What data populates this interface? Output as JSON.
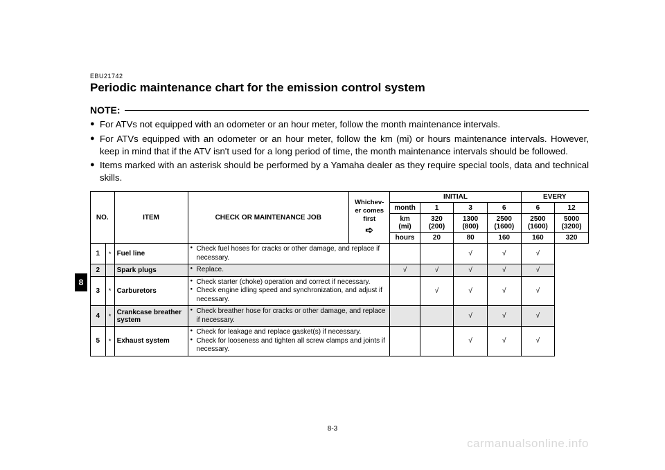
{
  "doc_code": "EBU21742",
  "title": "Periodic maintenance chart for the emission control system",
  "note_label": "NOTE:",
  "notes": [
    "For ATVs not equipped with an odometer or an hour meter, follow the month maintenance intervals.",
    "For ATVs equipped with an odometer or an hour meter, follow the km (mi) or hours maintenance intervals. However, keep in mind that if the ATV isn't used for a long period of time, the month maintenance intervals should be followed.",
    "Items marked with an asterisk should be performed by a Yamaha dealer as they require special tools, data and technical skills."
  ],
  "side_tab": "8",
  "header": {
    "no": "NO.",
    "item": "ITEM",
    "job": "CHECK OR MAINTENANCE JOB",
    "whichever": "Whichev-\ner comes\nfirst",
    "arrow": "➪",
    "initial": "INITIAL",
    "every": "EVERY",
    "unit_month": "month",
    "unit_km": "km\n(mi)",
    "unit_hours": "hours",
    "months": [
      "1",
      "3",
      "6",
      "6",
      "12"
    ],
    "km": [
      "320\n(200)",
      "1300\n(800)",
      "2500\n(1600)",
      "2500\n(1600)",
      "5000\n(3200)"
    ],
    "hours": [
      "20",
      "80",
      "160",
      "160",
      "320"
    ]
  },
  "rows": [
    {
      "no": "1",
      "star": "*",
      "item": "Fuel line",
      "jobs": [
        "Check fuel hoses for cracks or other damage, and replace if necessary."
      ],
      "checks": [
        "",
        "",
        "√",
        "√",
        "√"
      ],
      "shade": false
    },
    {
      "no": "2",
      "star": "",
      "item": "Spark plugs",
      "jobs": [
        "Replace."
      ],
      "checks": [
        "√",
        "√",
        "√",
        "√",
        "√"
      ],
      "shade": true
    },
    {
      "no": "3",
      "star": "*",
      "item": "Carburetors",
      "jobs": [
        "Check starter (choke) operation and correct if necessary.",
        "Check engine idling speed and synchronization, and adjust if necessary."
      ],
      "checks": [
        "",
        "√",
        "√",
        "√",
        "√"
      ],
      "shade": false
    },
    {
      "no": "4",
      "star": "*",
      "item": "Crankcase breather system",
      "jobs": [
        "Check breather hose for cracks or other damage, and replace if necessary."
      ],
      "checks": [
        "",
        "",
        "√",
        "√",
        "√"
      ],
      "shade": true
    },
    {
      "no": "5",
      "star": "*",
      "item": "Exhaust system",
      "jobs": [
        "Check for leakage and replace gasket(s) if necessary.",
        "Check for looseness and tighten all screw clamps and joints if necessary."
      ],
      "checks": [
        "",
        "",
        "√",
        "√",
        "√"
      ],
      "shade": false
    }
  ],
  "page_num": "8-3",
  "watermark": "carmanualsonline.info"
}
